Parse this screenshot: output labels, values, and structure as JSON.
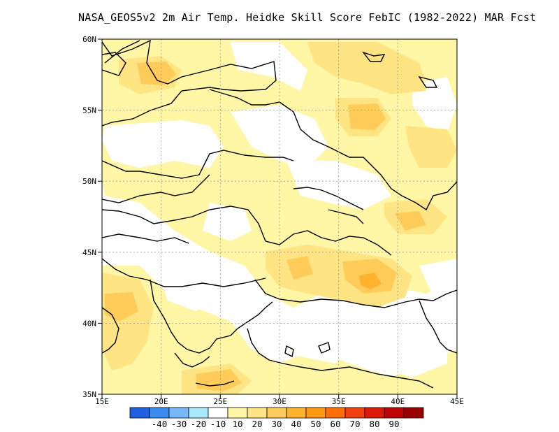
{
  "title": "NASA_GEOS5v2  2m Air Temp. Heidke Skill Score FebIC (1982-2022) MAR Fcst",
  "lat_labels": [
    "60N",
    "55N",
    "50N",
    "45N",
    "40N",
    "35N"
  ],
  "lon_labels": [
    "15E",
    "20E",
    "25E",
    "30E",
    "35E",
    "40E",
    "45E"
  ],
  "colorbar": {
    "colors": [
      "#1f5fe0",
      "#3b8cf0",
      "#78b8f8",
      "#a8e8fc",
      "#ffffff",
      "#fff6a6",
      "#ffe484",
      "#ffcc5a",
      "#ffb22e",
      "#ff9a10",
      "#ff6e08",
      "#f04010",
      "#dc1a0a",
      "#bc0606",
      "#9a0202"
    ],
    "labels": [
      "-40",
      "-30",
      "-20",
      "-10",
      "10",
      "20",
      "30",
      "40",
      "50",
      "60",
      "70",
      "80",
      "90"
    ]
  },
  "shading_colors": {
    "light": "#fff6a6",
    "medium": "#ffe484",
    "strong": "#ffcc5a",
    "peak": "#ffb22e"
  }
}
